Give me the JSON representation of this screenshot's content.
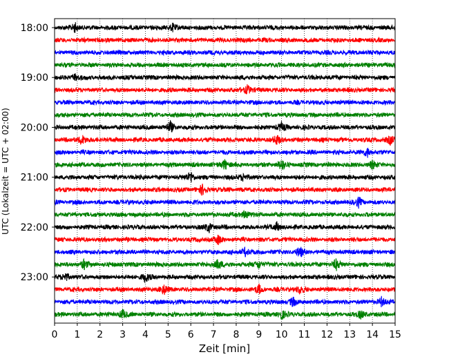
{
  "chart_data": {
    "type": "line",
    "title": "",
    "xlabel": "Zeit  [min]",
    "ylabel": "UTC (Lokalzeit = UTC + 02:00)",
    "xlim": [
      0,
      15
    ],
    "x_ticks": [
      "0",
      "1",
      "2",
      "3",
      "4",
      "5",
      "6",
      "7",
      "8",
      "9",
      "10",
      "11",
      "12",
      "13",
      "14",
      "15"
    ],
    "y_tick_labels": [
      "18:00",
      "19:00",
      "20:00",
      "21:00",
      "22:00",
      "23:00"
    ],
    "rows_per_hour": 4,
    "row_count": 24,
    "row_colors": [
      "#000000",
      "#ff0000",
      "#0000ff",
      "#008000"
    ],
    "grid": "vertical dotted",
    "events": [
      {
        "row": 0,
        "minute": 0.9,
        "amp": 0.9
      },
      {
        "row": 0,
        "minute": 5.2,
        "amp": 0.7
      },
      {
        "row": 4,
        "minute": 0.9,
        "amp": 0.6
      },
      {
        "row": 5,
        "minute": 8.5,
        "amp": 0.9
      },
      {
        "row": 8,
        "minute": 5.1,
        "amp": 1.0
      },
      {
        "row": 8,
        "minute": 10.0,
        "amp": 0.8
      },
      {
        "row": 9,
        "minute": 1.2,
        "amp": 1.0
      },
      {
        "row": 9,
        "minute": 9.8,
        "amp": 0.9
      },
      {
        "row": 9,
        "minute": 14.8,
        "amp": 0.8
      },
      {
        "row": 10,
        "minute": 13.8,
        "amp": 0.8
      },
      {
        "row": 11,
        "minute": 7.5,
        "amp": 1.0
      },
      {
        "row": 11,
        "minute": 10.0,
        "amp": 1.0
      },
      {
        "row": 11,
        "minute": 14.0,
        "amp": 0.7
      },
      {
        "row": 12,
        "minute": 6.0,
        "amp": 1.0
      },
      {
        "row": 12,
        "minute": 8.3,
        "amp": 0.7
      },
      {
        "row": 13,
        "minute": 6.5,
        "amp": 0.9
      },
      {
        "row": 14,
        "minute": 13.4,
        "amp": 0.9
      },
      {
        "row": 15,
        "minute": 8.4,
        "amp": 0.8
      },
      {
        "row": 16,
        "minute": 6.8,
        "amp": 0.9
      },
      {
        "row": 16,
        "minute": 9.8,
        "amp": 0.8
      },
      {
        "row": 17,
        "minute": 7.2,
        "amp": 0.8
      },
      {
        "row": 18,
        "minute": 10.8,
        "amp": 1.0
      },
      {
        "row": 18,
        "minute": 8.4,
        "amp": 0.8
      },
      {
        "row": 19,
        "minute": 1.3,
        "amp": 0.8
      },
      {
        "row": 19,
        "minute": 7.2,
        "amp": 1.0
      },
      {
        "row": 19,
        "minute": 9.0,
        "amp": 0.8
      },
      {
        "row": 19,
        "minute": 12.4,
        "amp": 1.0
      },
      {
        "row": 20,
        "minute": 0.5,
        "amp": 0.8
      },
      {
        "row": 20,
        "minute": 4.0,
        "amp": 0.9
      },
      {
        "row": 21,
        "minute": 4.8,
        "amp": 0.9
      },
      {
        "row": 21,
        "minute": 9.0,
        "amp": 0.8
      },
      {
        "row": 21,
        "minute": 10.8,
        "amp": 0.7
      },
      {
        "row": 22,
        "minute": 10.5,
        "amp": 0.8
      },
      {
        "row": 22,
        "minute": 14.4,
        "amp": 0.8
      },
      {
        "row": 23,
        "minute": 3.0,
        "amp": 0.8
      },
      {
        "row": 23,
        "minute": 10.0,
        "amp": 0.9
      },
      {
        "row": 23,
        "minute": 13.5,
        "amp": 0.7
      }
    ]
  }
}
